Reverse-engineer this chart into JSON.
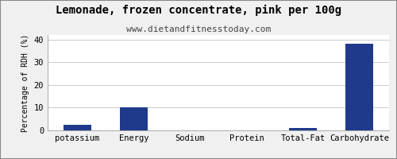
{
  "title": "Lemonade, frozen concentrate, pink per 100g",
  "subtitle": "www.dietandfitnesstoday.com",
  "categories": [
    "potassium",
    "Energy",
    "Sodium",
    "Protein",
    "Total-Fat",
    "Carbohydrate"
  ],
  "values": [
    2.5,
    10.0,
    0.0,
    0.0,
    1.0,
    38.0
  ],
  "bar_color": "#1f3a8a",
  "ylabel": "Percentage of RDH (%)",
  "ylim": [
    0,
    42
  ],
  "yticks": [
    0,
    10,
    20,
    30,
    40
  ],
  "background_color": "#f0f0f0",
  "plot_bg_color": "#ffffff",
  "title_fontsize": 10,
  "subtitle_fontsize": 8,
  "ylabel_fontsize": 7,
  "tick_fontsize": 7.5
}
